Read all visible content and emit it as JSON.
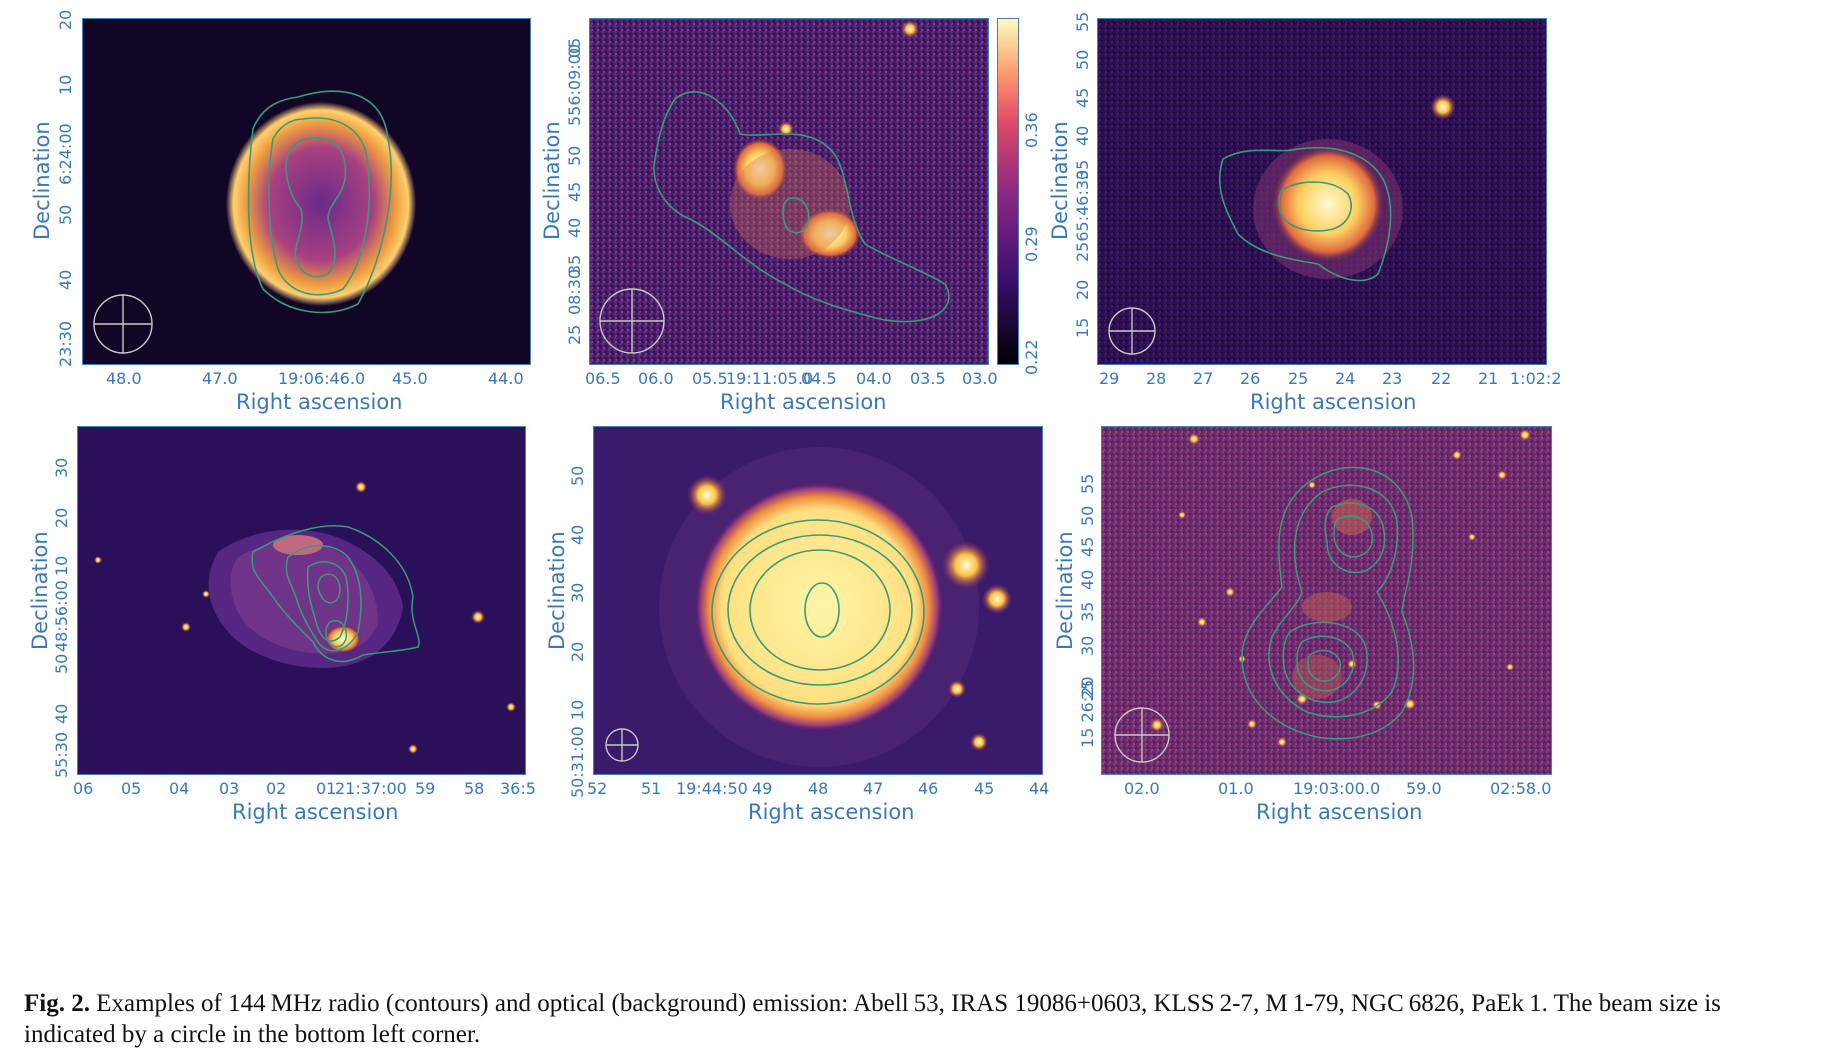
{
  "figure": {
    "caption_label": "Fig. 2.",
    "caption_text": " Examples of 144 MHz radio (contours) and optical (background) emission: Abell 53, IRAS 19086+0603, KLSS 2-7, M 1-79, NGC 6826, PaEk 1. The beam size is indicated by a circle in the bottom left corner."
  },
  "panels": [
    {
      "xlabel": "Right ascension",
      "ylabel": "Declination",
      "xticks": [
        "48.0",
        "47.0",
        "19:06:46.0",
        "45.0",
        "44.0"
      ],
      "yticks": [
        "23:30",
        "40",
        "50",
        "6:24:00",
        "10",
        "20"
      ]
    },
    {
      "xlabel": "Right ascension",
      "ylabel": "Declination",
      "xticks": [
        "06.5",
        "06.0",
        "05.5",
        "19:11:05.0",
        "04.5",
        "04.0",
        "03.5",
        "03.0"
      ],
      "yticks": [
        "25",
        "08:30",
        "35",
        "40",
        "45",
        "50",
        "556:09:00",
        "05"
      ],
      "colorbar_ticks": [
        "0.22",
        "0.29",
        "0.36"
      ]
    },
    {
      "xlabel": "Right ascension",
      "ylabel": "Declination",
      "xticks": [
        "29",
        "28",
        "27",
        "26",
        "25",
        "24",
        "23",
        "22",
        "21",
        "1:02:2"
      ],
      "yticks": [
        "15",
        "20",
        "2565:46:30",
        "35",
        "40",
        "45",
        "50",
        "55"
      ]
    },
    {
      "xlabel": "Right ascension",
      "ylabel": "Declination",
      "xticks": [
        "06",
        "05",
        "04",
        "03",
        "02",
        "01",
        "21:37:00",
        "59",
        "58",
        "36:5"
      ],
      "yticks": [
        "55:30",
        "40",
        "50",
        "48:56:00",
        "10",
        "20",
        "30"
      ]
    },
    {
      "xlabel": "Right ascension",
      "ylabel": "Declination",
      "xticks": [
        "52",
        "51",
        "19:44:50",
        "49",
        "48",
        "47",
        "46",
        "45",
        "44"
      ],
      "yticks": [
        "50:31:00",
        "10",
        "20",
        "30",
        "40",
        "50"
      ]
    },
    {
      "xlabel": "Right ascension",
      "ylabel": "Declination",
      "xticks": [
        "02.0",
        "01.0",
        "19:03:00.0",
        "59.0",
        "02:58.0"
      ],
      "yticks": [
        "15 26:20",
        "25",
        "30",
        "35",
        "40",
        "45",
        "50",
        "55"
      ]
    }
  ]
}
